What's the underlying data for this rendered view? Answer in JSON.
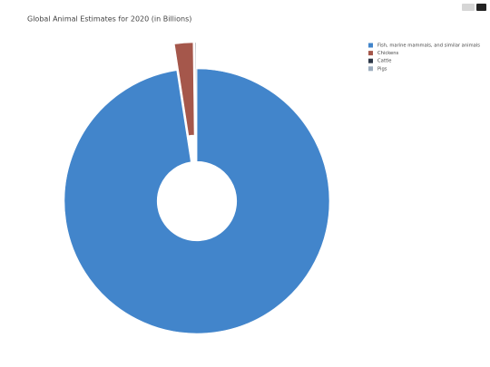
{
  "chart_data": {
    "type": "pie",
    "title": "Global Animal Estimates for 2020 (in Billions)",
    "categories": [
      "Fish, marine mammals, and similar animals",
      "Chickens",
      "Cattle",
      "Pigs"
    ],
    "values": [
      1000,
      23,
      1,
      1
    ],
    "colors": [
      "#4285cb",
      "#a5574b",
      "#2e3848",
      "#9aabbd"
    ],
    "hole": 0.3,
    "pull": [
      0,
      0.2,
      0.2,
      0
    ],
    "direction": "clockwise",
    "legend": "top-right"
  }
}
